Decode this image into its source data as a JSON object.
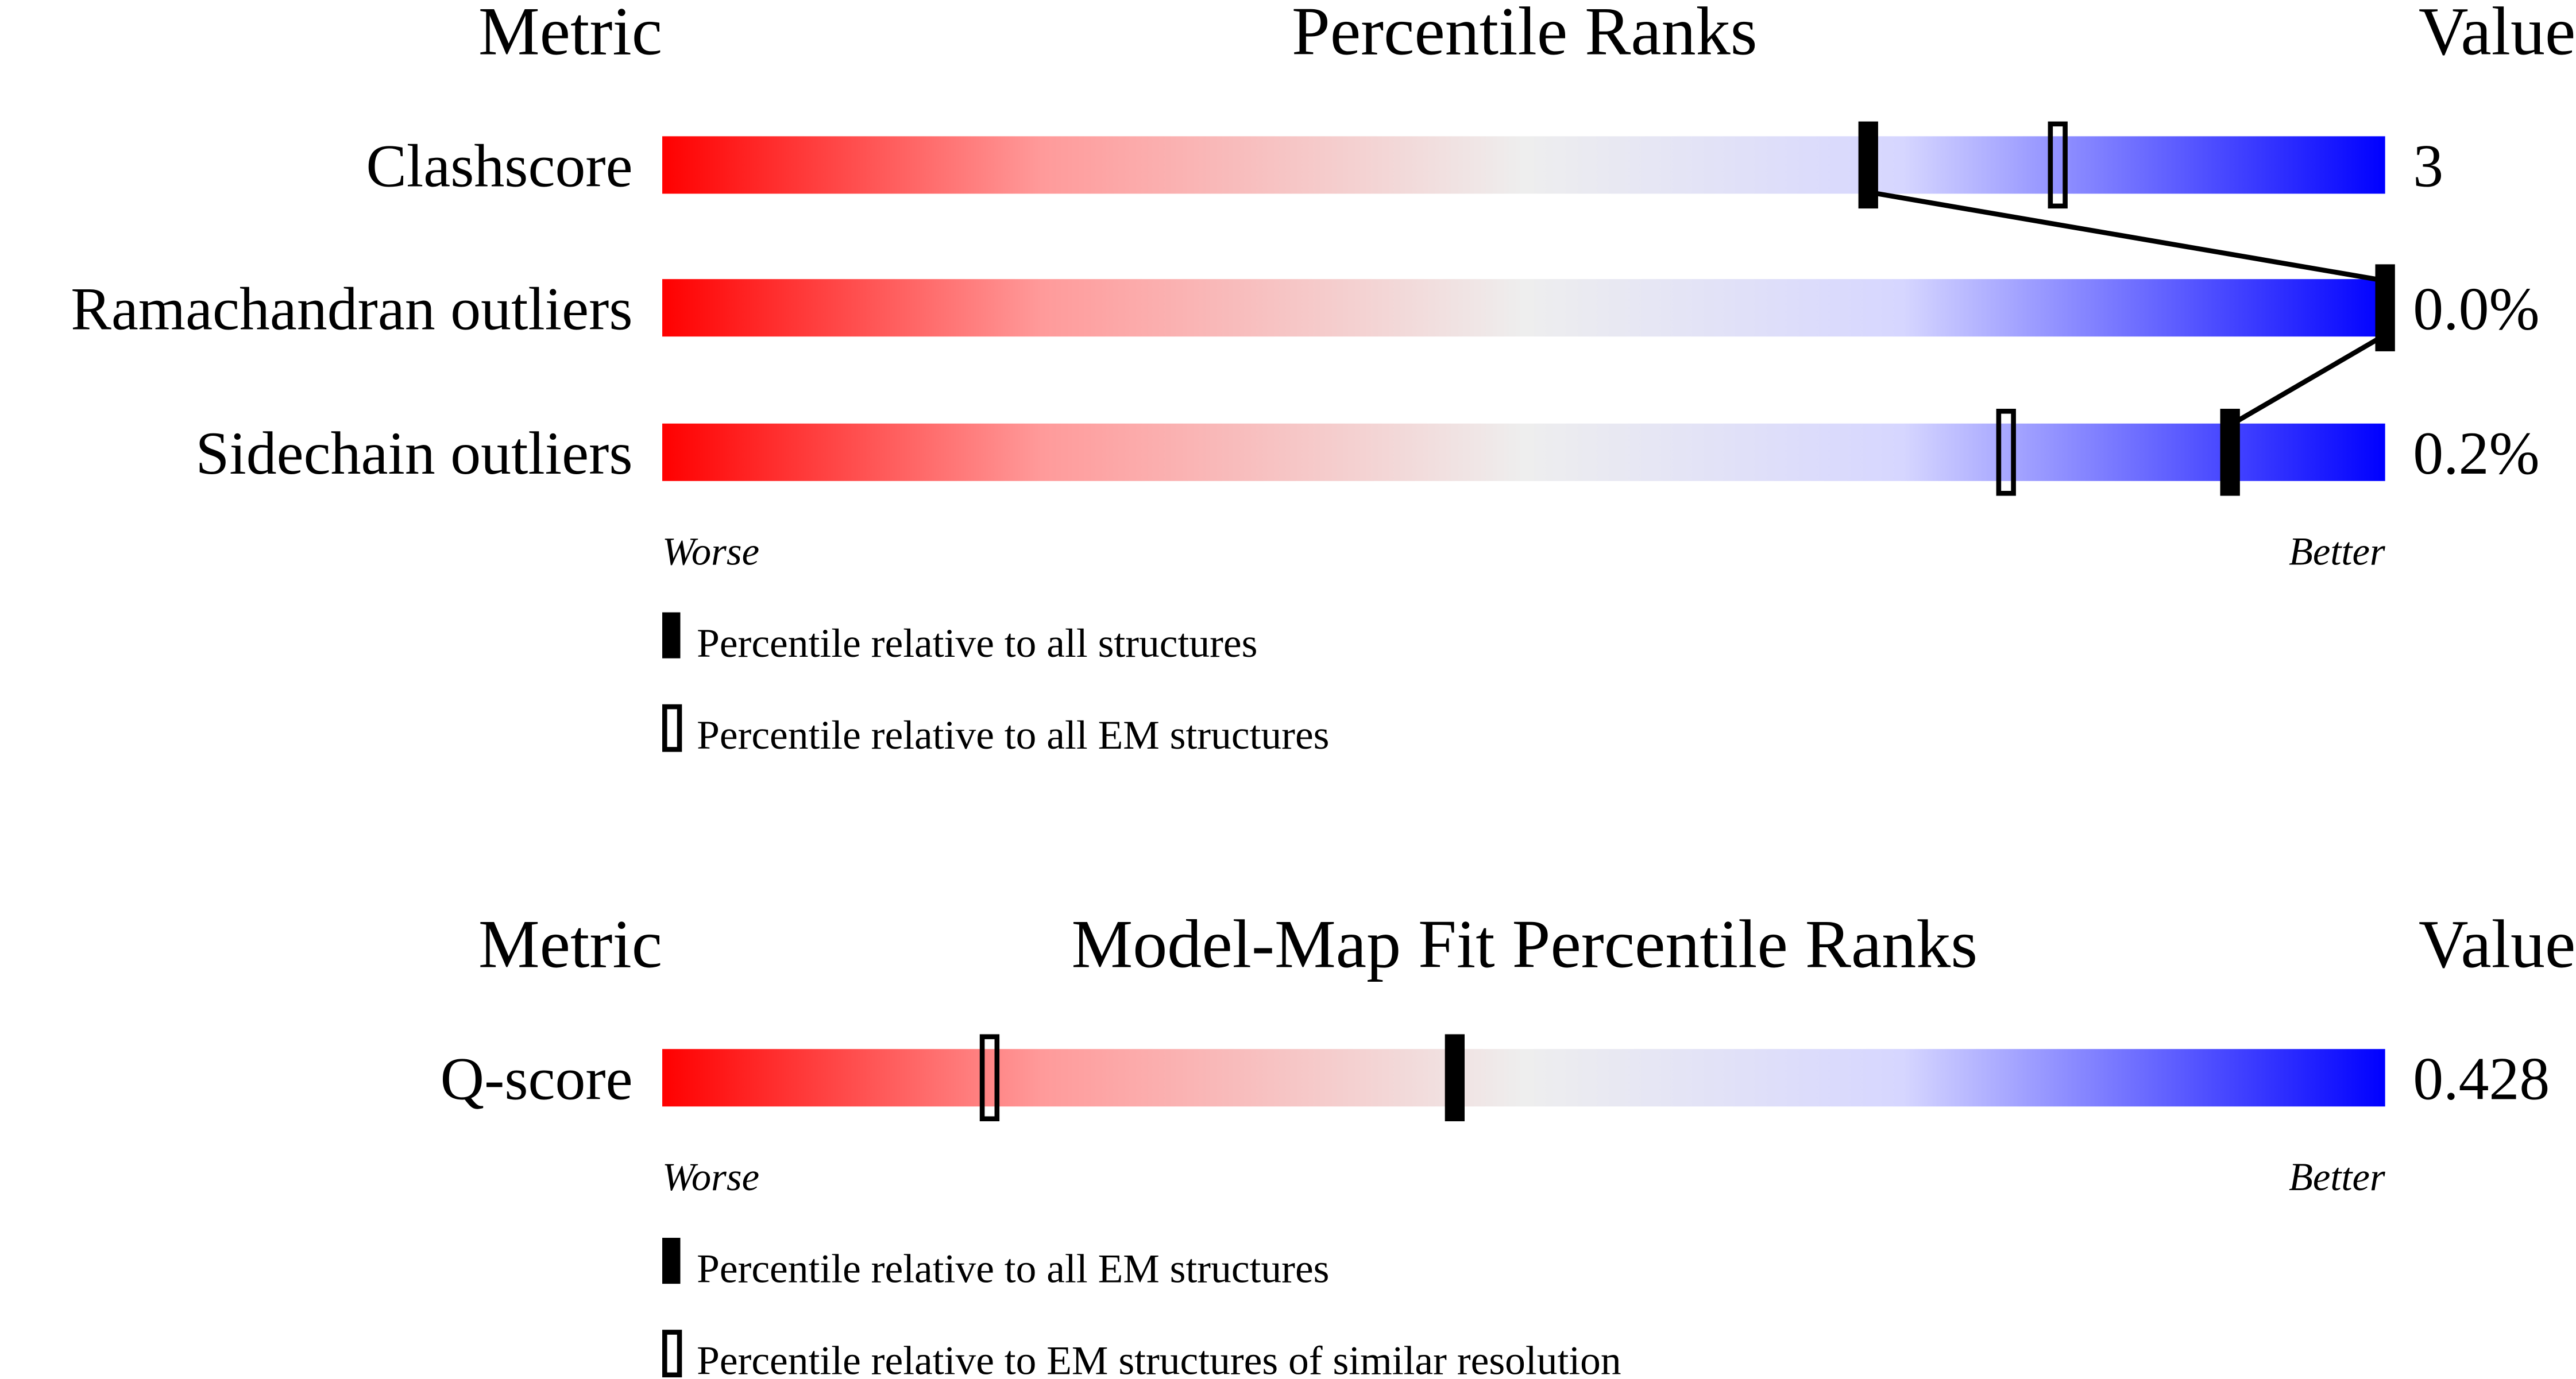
{
  "chart_data": [
    {
      "type": "bar",
      "headers": {
        "metric": "Metric",
        "title": "Percentile Ranks",
        "value": "Value"
      },
      "axis": {
        "left": "Worse",
        "right": "Better",
        "range": [
          0,
          100
        ]
      },
      "rows": [
        {
          "metric": "Clashscore",
          "value": "3",
          "percentile_all": 70,
          "percentile_em": 81
        },
        {
          "metric": "Ramachandran outliers",
          "value": "0.0%",
          "percentile_all": 100,
          "percentile_em": null
        },
        {
          "metric": "Sidechain outliers",
          "value": "0.2%",
          "percentile_all": 91,
          "percentile_em": 78
        }
      ],
      "legend": [
        {
          "marker": "filled",
          "label": "Percentile relative to all structures"
        },
        {
          "marker": "open",
          "label": "Percentile relative to all EM structures"
        }
      ],
      "connect_filled_markers": true
    },
    {
      "type": "bar",
      "headers": {
        "metric": "Metric",
        "title": "Model-Map Fit Percentile Ranks",
        "value": "Value"
      },
      "axis": {
        "left": "Worse",
        "right": "Better",
        "range": [
          0,
          100
        ]
      },
      "rows": [
        {
          "metric": "Q-score",
          "value": "0.428",
          "percentile_all": 46,
          "percentile_em": 19
        }
      ],
      "legend": [
        {
          "marker": "filled",
          "label": "Percentile relative to all EM structures"
        },
        {
          "marker": "open",
          "label": "Percentile relative to EM structures of similar resolution"
        }
      ],
      "connect_filled_markers": false
    }
  ],
  "colors": {
    "worse": "#ff0000",
    "middle": "#eeeeee",
    "better": "#0000ff",
    "marker": "#000000"
  }
}
